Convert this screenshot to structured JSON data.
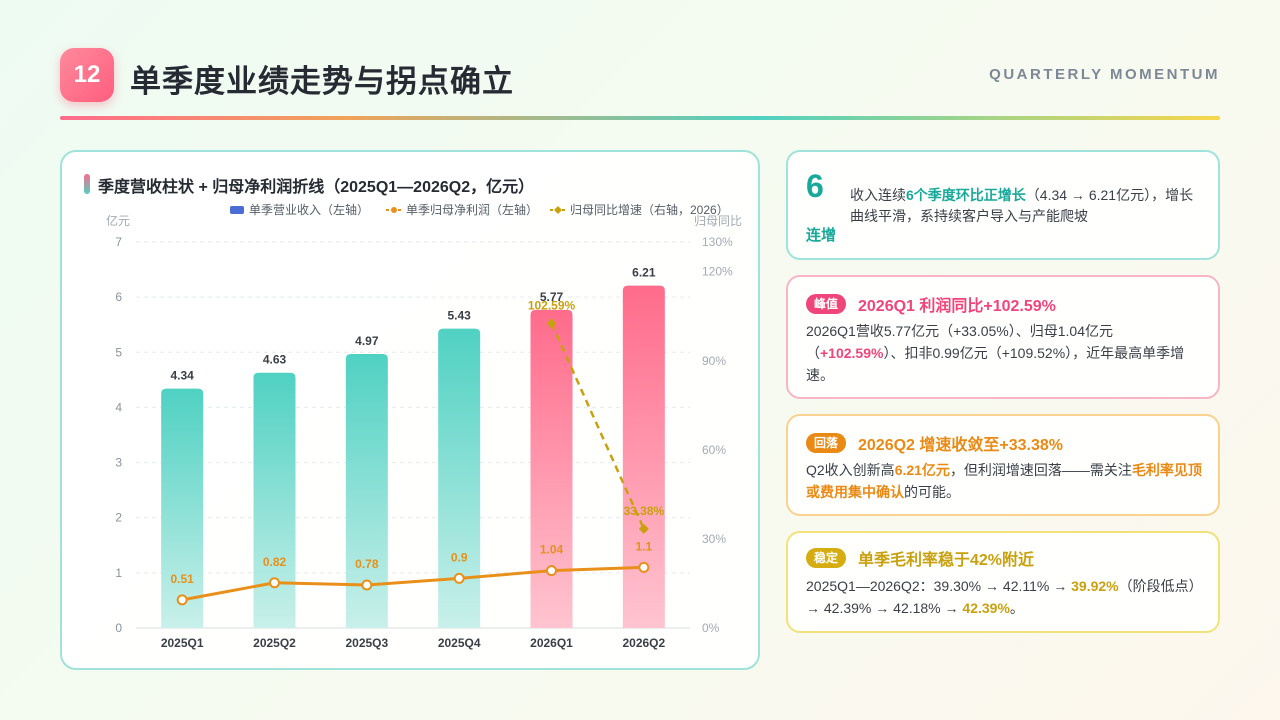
{
  "header": {
    "badge": "12",
    "title": "单季度业绩走势与拐点确立",
    "subtitle": "QUARTERLY MOMENTUM"
  },
  "chart_card": {
    "title": "季度营收柱状 + 归母净利润折线（2025Q1—2026Q2，亿元）"
  },
  "colors": {
    "bar_teal": "#4fd1c2",
    "bar_pink": "#ff6b8b",
    "profit_line": "#e8901a",
    "growth_line": "#c9a10e",
    "legend_revenue": "#4a6cd4"
  },
  "chart_data": {
    "type": "bar",
    "categories": [
      "2025Q1",
      "2025Q2",
      "2025Q3",
      "2025Q4",
      "2026Q1",
      "2026Q2"
    ],
    "ylabel": "亿元",
    "y2label": "归母同比",
    "ylim": [
      0,
      7
    ],
    "y_ticks": [
      "0",
      "1",
      "2",
      "3",
      "4",
      "5",
      "6",
      "7"
    ],
    "y2lim": [
      0,
      130
    ],
    "y2_ticks": [
      "0%",
      "30%",
      "60%",
      "90%",
      "120%",
      "130%"
    ],
    "legend_position": "top-right",
    "grid": true,
    "series": [
      {
        "name": "单季营业收入（左轴）",
        "kind": "bar",
        "axis": "left",
        "values": [
          4.34,
          4.63,
          4.97,
          5.43,
          5.77,
          6.21
        ],
        "labels": [
          "4.34",
          "4.63",
          "4.97",
          "5.43",
          "5.77",
          "6.21"
        ]
      },
      {
        "name": "单季归母净利润（左轴）",
        "kind": "line",
        "axis": "left",
        "values": [
          0.51,
          0.82,
          0.78,
          0.9,
          1.04,
          1.1
        ],
        "labels": [
          "0.51",
          "0.82",
          "0.78",
          "0.9",
          "1.04",
          "1.1"
        ]
      },
      {
        "name": "归母同比增速（右轴，2026）",
        "kind": "line",
        "axis": "right",
        "x": [
          "2026Q1",
          "2026Q2"
        ],
        "values": [
          102.59,
          33.38
        ],
        "labels": [
          "102.59%",
          "33.38%"
        ]
      }
    ]
  },
  "cards": {
    "card1": {
      "big_num": "6",
      "big_label": "连增",
      "t1": "收入连续",
      "t2": "6个季度环比正增长",
      "t3": "（4.34 → 6.21亿元），增长曲线平滑，系持续客户导入与产能爬坡"
    },
    "card2": {
      "tag": "峰值",
      "head": "2026Q1 利润同比+102.59%",
      "b1": "2026Q1营收5.77亿元（+33.05%）、归母1.04亿元（",
      "b2": "+102.59%",
      "b3": "）、扣非0.99亿元（+109.52%），近年最高单季增速。"
    },
    "card3": {
      "tag": "回落",
      "head": "2026Q2 增速收敛至+33.38%",
      "b1": "Q2收入创新高",
      "b2": "6.21亿元",
      "b3": "，但利润增速回落——需关注",
      "b4": "毛利率见顶或费用集中确认",
      "b5": "的可能。"
    },
    "card4": {
      "tag": "稳定",
      "head": "单季毛利率稳于42%附近",
      "b1": "2025Q1—2026Q2：39.30% → 42.11% → ",
      "b2": "39.92%",
      "b3": "（阶段低点）→ 42.39% → 42.18% → ",
      "b4": "42.39%",
      "b5": "。"
    }
  }
}
